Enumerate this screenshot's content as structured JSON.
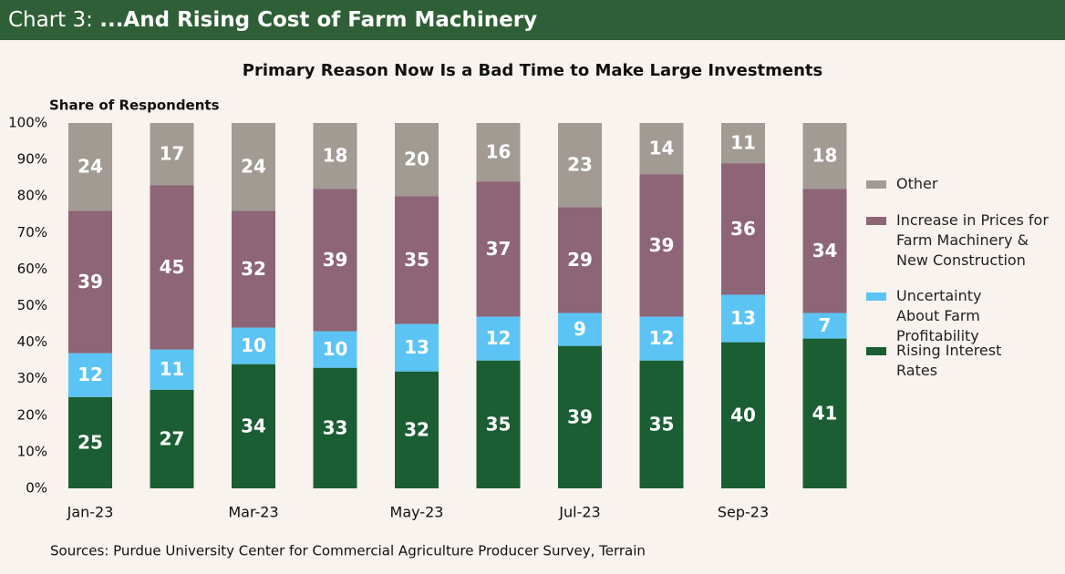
{
  "header": {
    "label": "Chart 3:",
    "title": "...And Rising Cost of Farm Machinery"
  },
  "chart_data": {
    "type": "stacked_bar",
    "title": "Primary Reason Now Is a Bad Time to Make Large Investments",
    "y_label": "Share of Respondents",
    "source": "Sources: Purdue University Center for Commercial Agriculture Producer Survey, Terrain",
    "categories": [
      "Jan-23",
      null,
      "Mar-23",
      null,
      "May-23",
      null,
      "Jul-23",
      null,
      "Sep-23",
      null
    ],
    "series": [
      {
        "name": "Rising Interest Rates",
        "color": "#1b5e33",
        "values": [
          25,
          27,
          34,
          33,
          32,
          35,
          39,
          35,
          40,
          41
        ]
      },
      {
        "name": "Uncertainty About Farm Profitability",
        "color": "#5cc4f4",
        "values": [
          12,
          11,
          10,
          10,
          13,
          12,
          9,
          12,
          13,
          7
        ]
      },
      {
        "name": "Increase in Prices for Farm Machinery & New Construction",
        "color": "#8d6576",
        "values": [
          39,
          45,
          32,
          39,
          35,
          37,
          29,
          39,
          36,
          34
        ]
      },
      {
        "name": "Other",
        "color": "#a19b94",
        "values": [
          24,
          17,
          24,
          18,
          20,
          16,
          23,
          14,
          11,
          18
        ]
      }
    ],
    "ylim": [
      0,
      100
    ],
    "yticks": [
      {
        "value": 0,
        "label": "0%"
      },
      {
        "value": 10,
        "label": "10%"
      },
      {
        "value": 20,
        "label": "20%"
      },
      {
        "value": 30,
        "label": "30%"
      },
      {
        "value": 40,
        "label": "40%"
      },
      {
        "value": 50,
        "label": "50%"
      },
      {
        "value": 60,
        "label": "60%"
      },
      {
        "value": 70,
        "label": "70%"
      },
      {
        "value": 80,
        "label": "80%"
      },
      {
        "value": 90,
        "label": "90%"
      },
      {
        "value": 100,
        "label": "100%"
      }
    ]
  }
}
